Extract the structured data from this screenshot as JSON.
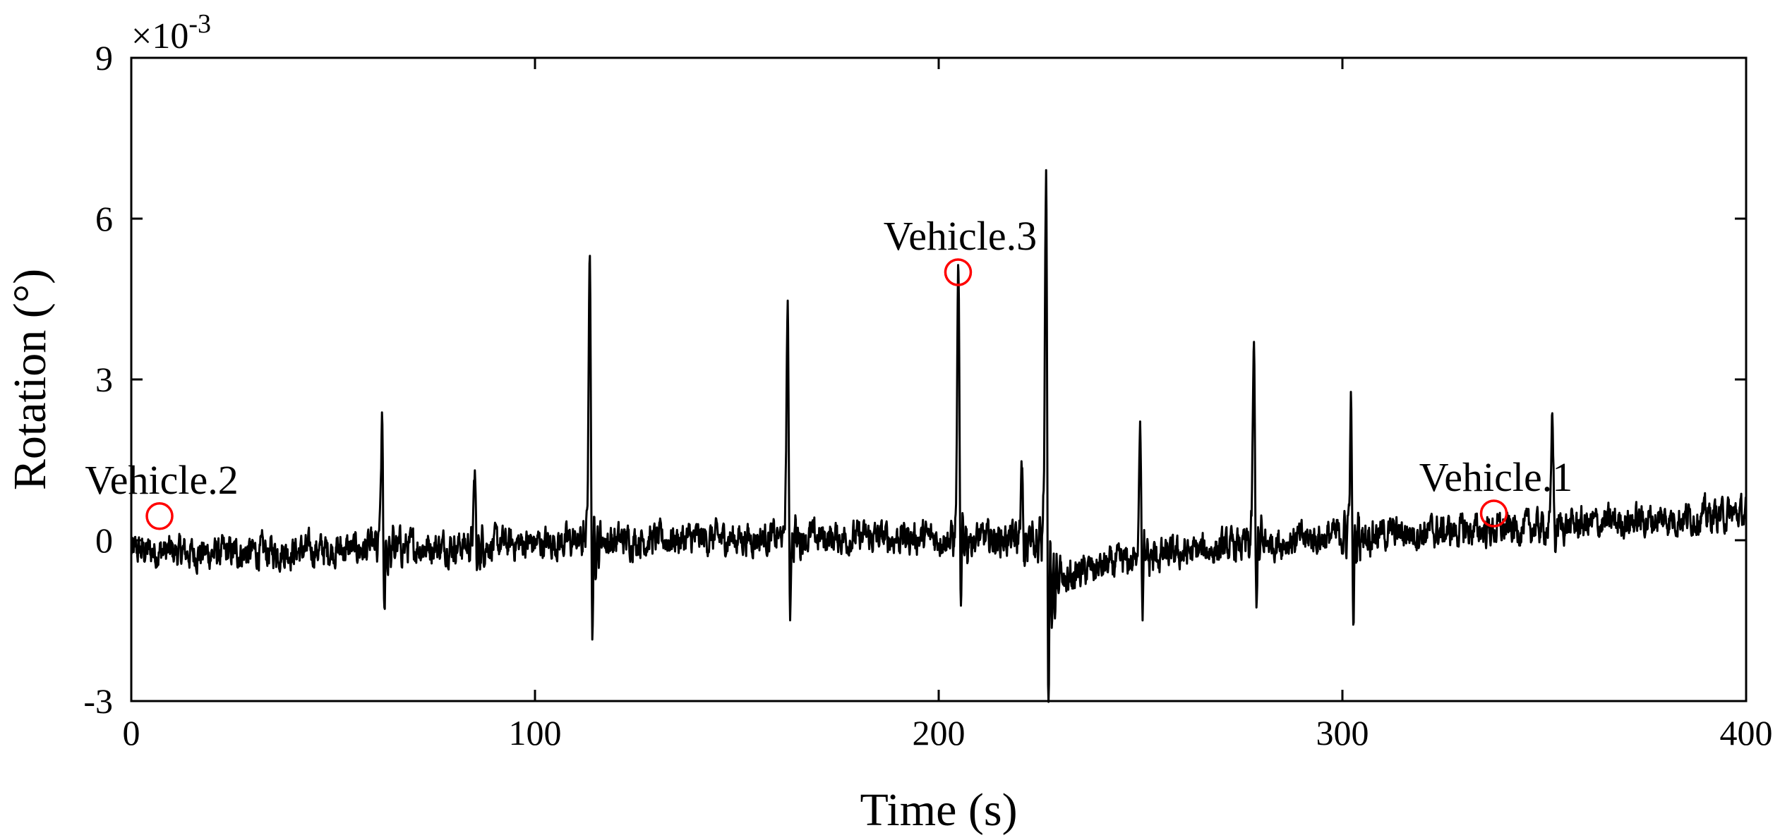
{
  "chart_data": {
    "type": "line",
    "xlabel": "Time (s)",
    "ylabel": "Rotation (°)",
    "y_multiplier_label": "×10",
    "y_multiplier_exponent": "-3",
    "xlim": [
      0,
      400
    ],
    "ylim": [
      -3,
      9
    ],
    "x_ticks": [
      0,
      100,
      200,
      300,
      400
    ],
    "x_tick_labels": [
      "0",
      "100",
      "200",
      "300",
      "400"
    ],
    "y_ticks": [
      -3,
      0,
      3,
      6,
      9
    ],
    "y_tick_labels": [
      "-3",
      "0",
      "3",
      "6",
      "9"
    ],
    "grid": false,
    "series": [
      {
        "color": "#000000",
        "baseline": [
          [
            0,
            -0.2
          ],
          [
            20,
            -0.25
          ],
          [
            40,
            -0.2
          ],
          [
            60,
            -0.15
          ],
          [
            80,
            -0.1
          ],
          [
            100,
            -0.05
          ],
          [
            120,
            0.0
          ],
          [
            160,
            0.05
          ],
          [
            200,
            0.05
          ],
          [
            226,
            0.0
          ],
          [
            228,
            -0.9
          ],
          [
            235,
            -0.6
          ],
          [
            250,
            -0.35
          ],
          [
            270,
            -0.15
          ],
          [
            300,
            0.1
          ],
          [
            320,
            0.15
          ],
          [
            340,
            0.2
          ],
          [
            360,
            0.3
          ],
          [
            380,
            0.4
          ],
          [
            400,
            0.5
          ]
        ],
        "events": [
          {
            "x": 62,
            "peak": 1.9,
            "trough": -1.2
          },
          {
            "x": 85,
            "peak": 1.15,
            "trough": -0.5
          },
          {
            "x": 113.5,
            "peak": 5.3,
            "trough": -1.35
          },
          {
            "x": 162.5,
            "peak": 4.05,
            "trough": -1.0
          },
          {
            "x": 204.8,
            "peak": 4.9,
            "trough": -1.1
          },
          {
            "x": 220.5,
            "peak": 1.2,
            "trough": -0.5
          },
          {
            "x": 226.5,
            "peak": 6.8,
            "trough": -2.4
          },
          {
            "x": 249.8,
            "peak": 2.5,
            "trough": -1.0
          },
          {
            "x": 278,
            "peak": 3.45,
            "trough": -0.9
          },
          {
            "x": 302,
            "peak": 1.9,
            "trough": -1.35
          },
          {
            "x": 352,
            "peak": 2.1,
            "trough": -0.1
          }
        ]
      }
    ],
    "annotations": [
      {
        "text": "Vehicle.2",
        "x": 7,
        "y": 0.45
      },
      {
        "text": "Vehicle.3",
        "x": 204.8,
        "y": 5.0
      },
      {
        "text": "Vehicle.1",
        "x": 337.5,
        "y": 0.5
      }
    ],
    "marker_color": "#ff0000"
  }
}
